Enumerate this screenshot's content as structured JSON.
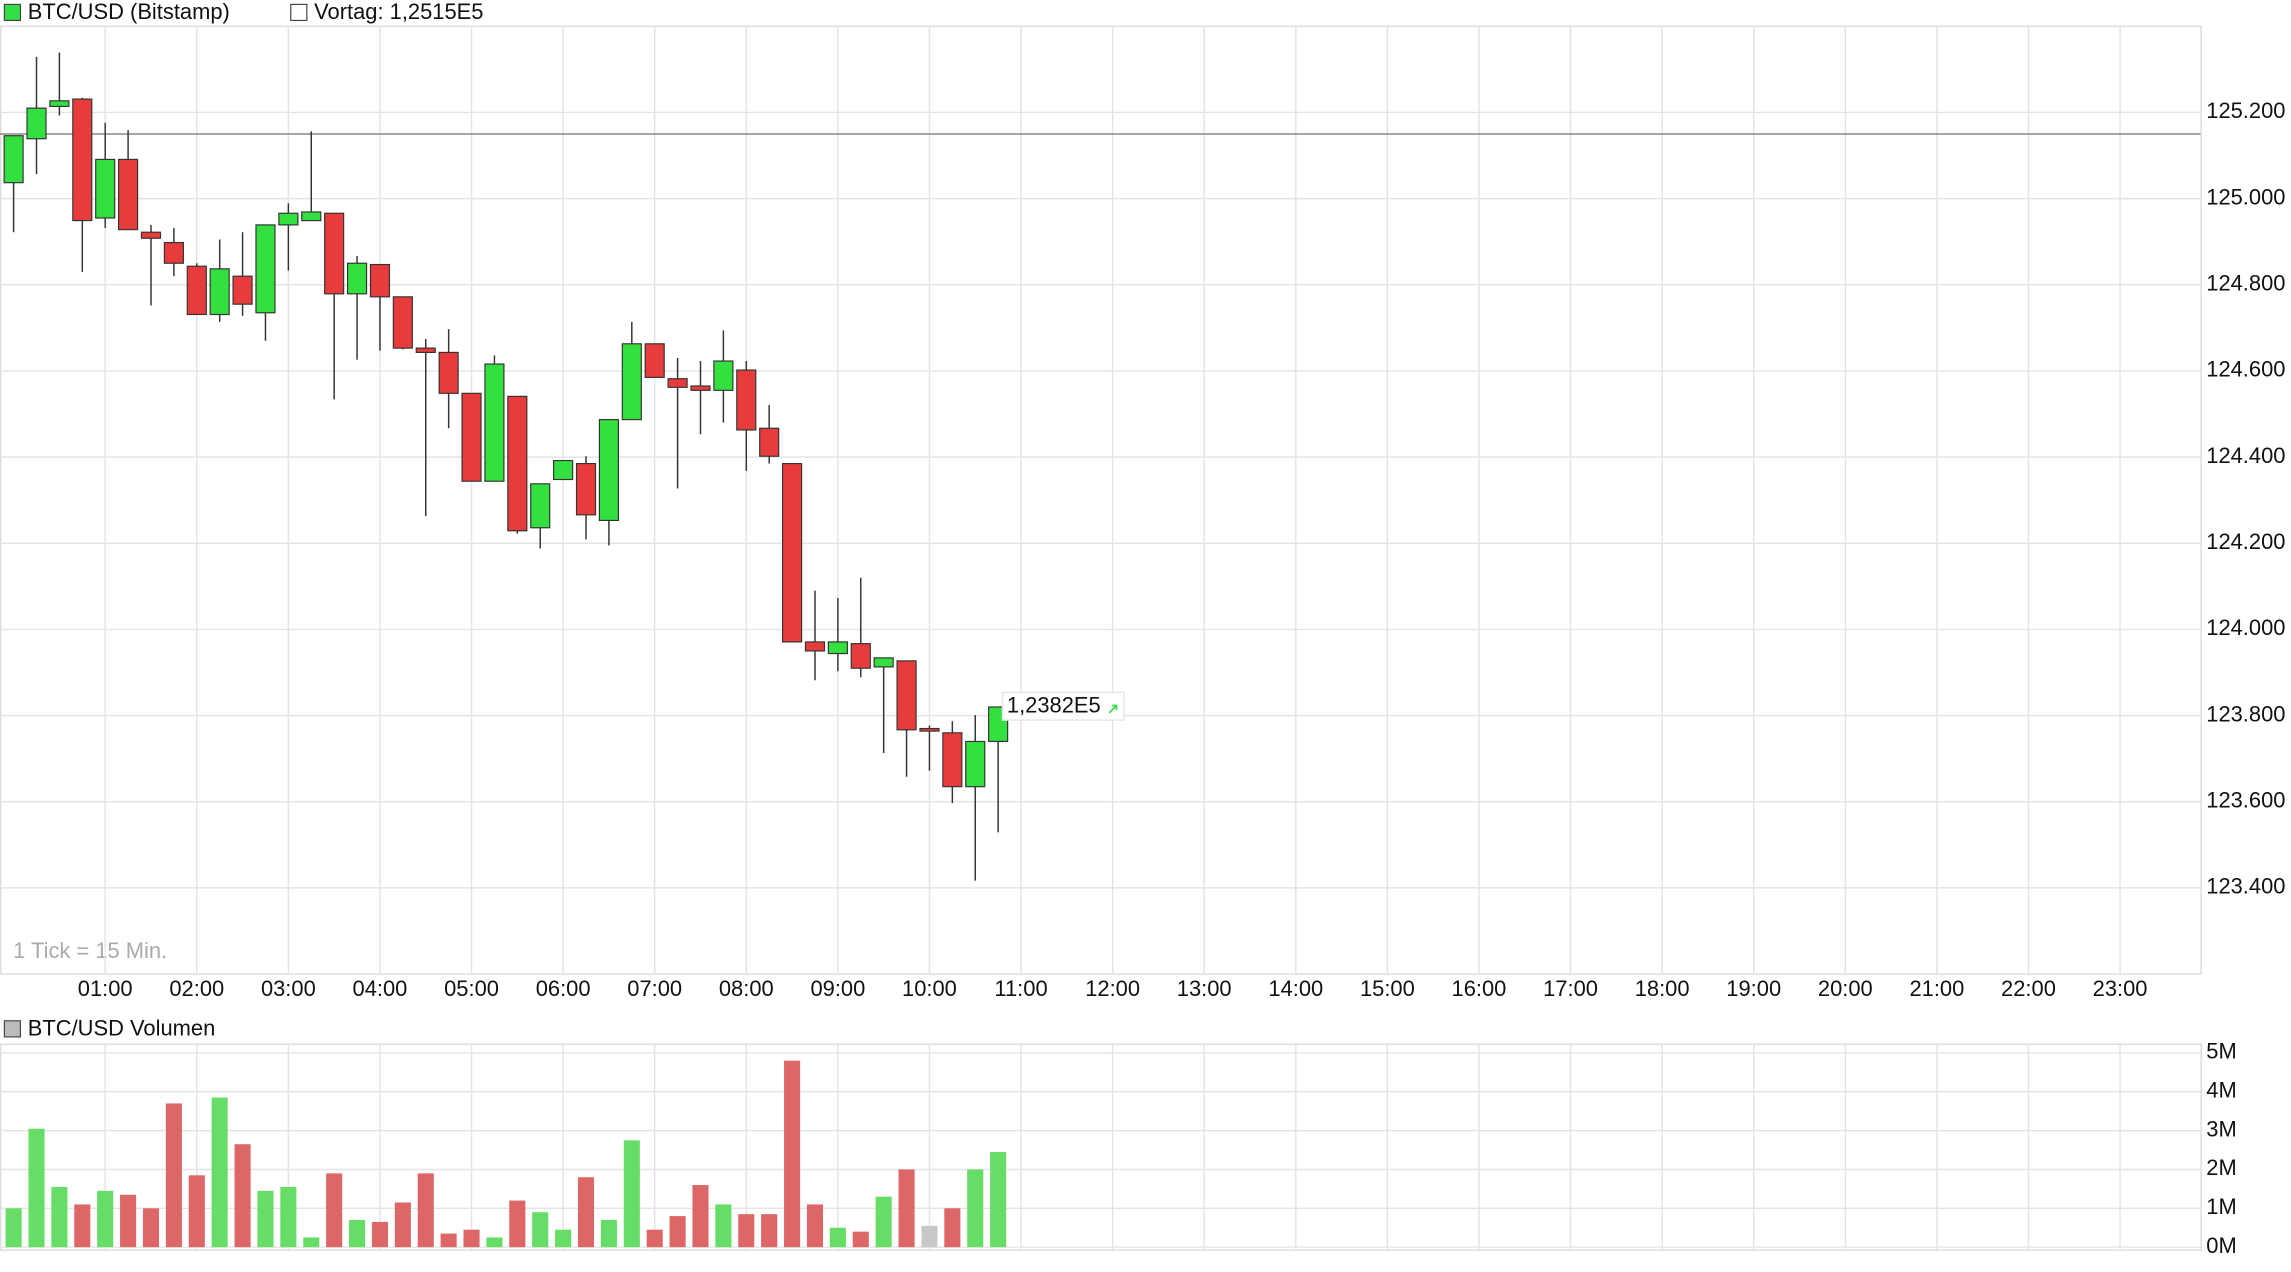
{
  "chart_data": [
    {
      "type": "candlestick",
      "title": "BTC/USD (Bitstamp)",
      "title_color": "#33dd44",
      "previous_close": {
        "value": 125150,
        "label": "Vortag: 1,2515E5"
      },
      "last_price": {
        "value": 123820,
        "label": "1,2382E5"
      },
      "annotation": "1 Tick = 15 Min.",
      "x": [
        "00:00",
        "00:15",
        "00:30",
        "00:45",
        "01:00",
        "01:15",
        "01:30",
        "01:45",
        "02:00",
        "02:15",
        "02:30",
        "02:45",
        "03:00",
        "03:15",
        "03:30",
        "03:45",
        "04:00",
        "04:15",
        "04:30",
        "04:45",
        "05:00",
        "05:15",
        "05:30",
        "05:45",
        "06:00",
        "06:15",
        "06:30",
        "06:45",
        "07:00",
        "07:15",
        "07:30",
        "07:45",
        "08:00",
        "08:15",
        "08:30",
        "08:45",
        "09:00",
        "09:15",
        "09:30",
        "09:45",
        "10:00",
        "10:15",
        "10:30",
        "10:45"
      ],
      "open": [
        125037,
        125139,
        125214,
        125231,
        124955,
        125091,
        124922,
        124898,
        124843,
        124731,
        124820,
        124735,
        124939,
        124949,
        124966,
        124779,
        124847,
        124772,
        124653,
        124643,
        124548,
        124344,
        124541,
        124236,
        124348,
        124385,
        124253,
        124487,
        124663,
        124582,
        124565,
        124555,
        124602,
        124467,
        124385,
        123971,
        123944,
        123967,
        123913,
        123927,
        123770,
        123760,
        123635,
        123740
      ],
      "high": [
        125146,
        125329,
        125339,
        125234,
        125176,
        125159,
        124939,
        124932,
        124850,
        124905,
        124922,
        124939,
        124989,
        125156,
        124966,
        124867,
        124847,
        124772,
        124674,
        124697,
        124548,
        124636,
        124541,
        124338,
        124392,
        124402,
        124487,
        124714,
        124663,
        124630,
        124623,
        124694,
        124623,
        124521,
        124385,
        124090,
        124073,
        124120,
        123934,
        123927,
        123777,
        123787,
        123801,
        123820
      ],
      "low": [
        124922,
        125057,
        125193,
        124830,
        124932,
        124928,
        124752,
        124820,
        124731,
        124714,
        124728,
        124670,
        124833,
        124949,
        124534,
        124626,
        124647,
        124650,
        124263,
        124467,
        124344,
        124344,
        124222,
        124188,
        124348,
        124209,
        124195,
        124487,
        124585,
        124327,
        124453,
        124480,
        124368,
        124385,
        123971,
        123882,
        123903,
        123889,
        123713,
        123658,
        123672,
        123597,
        123417,
        123529
      ],
      "close": [
        125146,
        125210,
        125227,
        124949,
        125091,
        124928,
        124908,
        124850,
        124731,
        124837,
        124755,
        124939,
        124966,
        124969,
        124779,
        124850,
        124772,
        124653,
        124643,
        124548,
        124344,
        124616,
        124229,
        124338,
        124392,
        124266,
        124487,
        124663,
        124585,
        124562,
        124555,
        124623,
        124463,
        124402,
        123971,
        123950,
        123971,
        123910,
        123934,
        123767,
        123764,
        123635,
        123740,
        123820
      ],
      "up_color": "#33e03f",
      "down_color": "#e83c3c",
      "xticks": [
        "01:00",
        "02:00",
        "03:00",
        "04:00",
        "05:00",
        "06:00",
        "07:00",
        "08:00",
        "09:00",
        "10:00",
        "11:00",
        "12:00",
        "13:00",
        "14:00",
        "15:00",
        "16:00",
        "17:00",
        "18:00",
        "19:00",
        "20:00",
        "21:00",
        "22:00",
        "23:00"
      ],
      "ylim": [
        123200,
        125400
      ],
      "yticks": [
        {
          "value": 123400,
          "label": "123.400"
        },
        {
          "value": 123600,
          "label": "123.600"
        },
        {
          "value": 123800,
          "label": "123.800"
        },
        {
          "value": 124000,
          "label": "124.000"
        },
        {
          "value": 124200,
          "label": "124.200"
        },
        {
          "value": 124400,
          "label": "124.400"
        },
        {
          "value": 124600,
          "label": "124.600"
        },
        {
          "value": 124800,
          "label": "124.800"
        },
        {
          "value": 125000,
          "label": "125.000"
        },
        {
          "value": 125200,
          "label": "125.200"
        }
      ],
      "grid": true
    },
    {
      "type": "bar",
      "title": "BTC/USD Volumen",
      "title_color": "#bbbbbb",
      "x": [
        "00:00",
        "00:15",
        "00:30",
        "00:45",
        "01:00",
        "01:15",
        "01:30",
        "01:45",
        "02:00",
        "02:15",
        "02:30",
        "02:45",
        "03:00",
        "03:15",
        "03:30",
        "03:45",
        "04:00",
        "04:15",
        "04:30",
        "04:45",
        "05:00",
        "05:15",
        "05:30",
        "05:45",
        "06:00",
        "06:15",
        "06:30",
        "06:45",
        "07:00",
        "07:15",
        "07:30",
        "07:45",
        "08:00",
        "08:15",
        "08:30",
        "08:45",
        "09:00",
        "09:15",
        "09:30",
        "09:45",
        "10:00",
        "10:15",
        "10:30",
        "10:45"
      ],
      "values": [
        1000000,
        3050000,
        1550000,
        1100000,
        1450000,
        1350000,
        1000000,
        3700000,
        1850000,
        3850000,
        2650000,
        1450000,
        1550000,
        250000,
        1900000,
        700000,
        650000,
        1150000,
        1900000,
        350000,
        450000,
        250000,
        1200000,
        900000,
        450000,
        1800000,
        700000,
        2750000,
        450000,
        800000,
        1600000,
        1100000,
        850000,
        850000,
        4800000,
        1100000,
        500000,
        400000,
        1300000,
        2000000,
        550000,
        1000000,
        2000000,
        2450000
      ],
      "colors": [
        "#66dd66",
        "#66dd66",
        "#66dd66",
        "#dd6666",
        "#66dd66",
        "#dd6666",
        "#dd6666",
        "#dd6666",
        "#dd6666",
        "#66dd66",
        "#dd6666",
        "#66dd66",
        "#66dd66",
        "#66dd66",
        "#dd6666",
        "#66dd66",
        "#dd6666",
        "#dd6666",
        "#dd6666",
        "#dd6666",
        "#dd6666",
        "#66dd66",
        "#dd6666",
        "#66dd66",
        "#66dd66",
        "#dd6666",
        "#66dd66",
        "#66dd66",
        "#dd6666",
        "#dd6666",
        "#dd6666",
        "#66dd66",
        "#dd6666",
        "#dd6666",
        "#dd6666",
        "#dd6666",
        "#66dd66",
        "#dd6666",
        "#66dd66",
        "#dd6666",
        "#c8c8c8",
        "#dd6666",
        "#66dd66",
        "#66dd66"
      ],
      "ylim": [
        0,
        5000000
      ],
      "yticks": [
        {
          "value": 0,
          "label": "0M"
        },
        {
          "value": 1000000,
          "label": "1M"
        },
        {
          "value": 2000000,
          "label": "2M"
        },
        {
          "value": 3000000,
          "label": "3M"
        },
        {
          "value": 4000000,
          "label": "4M"
        },
        {
          "value": 5000000,
          "label": "5M"
        }
      ],
      "grid": true
    }
  ]
}
